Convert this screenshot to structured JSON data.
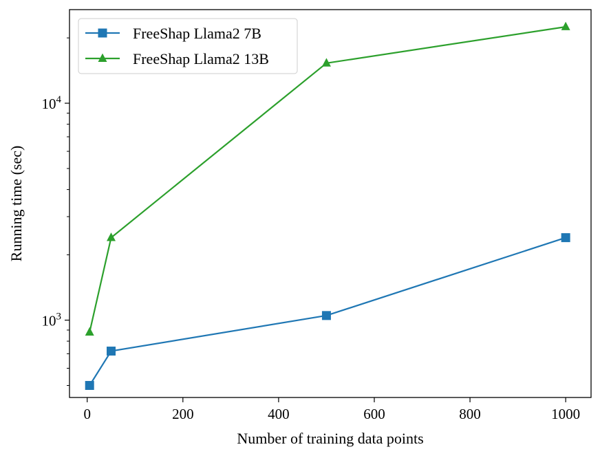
{
  "chart_data": {
    "type": "line",
    "xlabel": "Number of training data points",
    "ylabel": "Running time (sec)",
    "xlim": [
      -37,
      1053
    ],
    "ylim": [
      440,
      27000
    ],
    "yscale": "log",
    "grid": false,
    "legend": "upper-left",
    "x_ticks": [
      0,
      200,
      400,
      600,
      800,
      1000
    ],
    "x_tick_labels": [
      "0",
      "200",
      "400",
      "600",
      "800",
      "1000"
    ],
    "y_major_ticks": [
      {
        "value": 1000,
        "base": "10",
        "exp": "3"
      },
      {
        "value": 10000,
        "base": "10",
        "exp": "4"
      }
    ],
    "series": [
      {
        "name": "FreeShap Llama2 7B",
        "color": "#1f77b4",
        "marker": "square",
        "x": [
          5,
          50,
          500,
          1000
        ],
        "y": [
          500,
          720,
          1050,
          2400
        ]
      },
      {
        "name": "FreeShap Llama2 13B",
        "color": "#2ca02c",
        "marker": "triangle",
        "x": [
          5,
          50,
          500,
          1000
        ],
        "y": [
          880,
          2400,
          15300,
          22500
        ]
      }
    ]
  }
}
